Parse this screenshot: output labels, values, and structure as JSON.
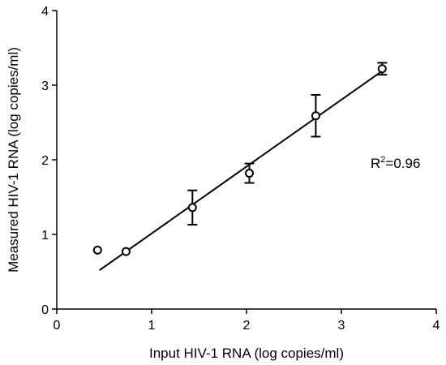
{
  "chart_data": {
    "type": "scatter",
    "title": "",
    "xlabel": "Input HIV-1 RNA (log copies/ml)",
    "ylabel": "Measured HIV-1 RNA (log copies/ml)",
    "xlim": [
      0,
      4
    ],
    "ylim": [
      0,
      4
    ],
    "xticks": [
      "0",
      "1",
      "2",
      "3",
      "4"
    ],
    "yticks": [
      "0",
      "1",
      "2",
      "3",
      "4"
    ],
    "grid": false,
    "points": [
      {
        "x": 0.43,
        "y": 0.79,
        "err": 0
      },
      {
        "x": 0.73,
        "y": 0.77,
        "err": 0
      },
      {
        "x": 1.43,
        "y": 1.36,
        "err": 0.23
      },
      {
        "x": 2.03,
        "y": 1.82,
        "err": 0.13
      },
      {
        "x": 2.73,
        "y": 2.59,
        "err": 0.28
      },
      {
        "x": 3.43,
        "y": 3.22,
        "err": 0.08
      }
    ],
    "fit_line": {
      "x": [
        0.45,
        3.43
      ],
      "y": [
        0.52,
        3.19
      ]
    },
    "annotation": {
      "base": "R",
      "sup": "2",
      "rest": "=0.96"
    }
  }
}
